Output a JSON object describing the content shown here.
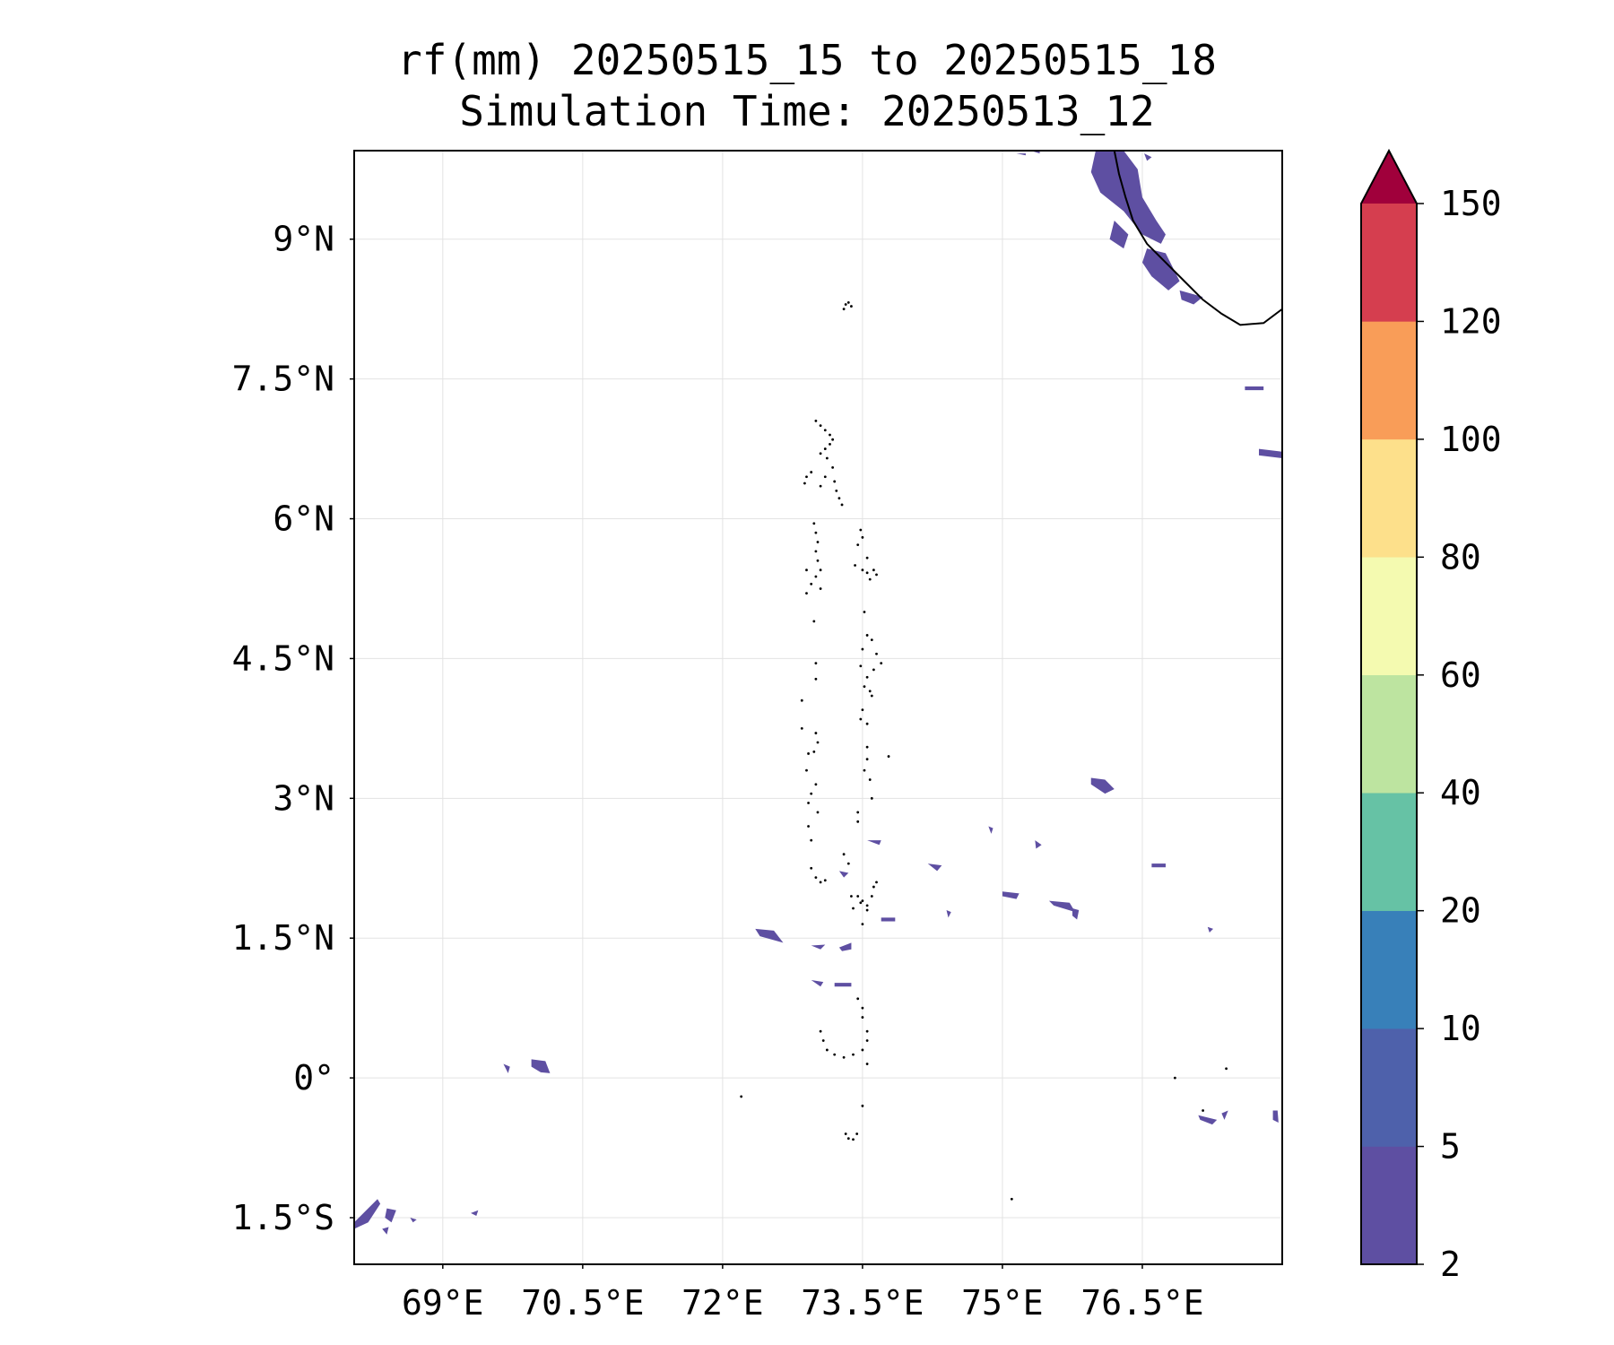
{
  "title": {
    "line1": "rf(mm) 20250515_15 to 20250515_18",
    "line2": "Simulation Time: 20250513_12"
  },
  "map": {
    "extent": {
      "lon_min": 68.05,
      "lon_max": 78.0,
      "lat_min": -2.0,
      "lat_max": 9.95
    },
    "gridlines": true,
    "x_ticks": [
      {
        "value": 69.0,
        "label": "69°E"
      },
      {
        "value": 70.5,
        "label": "70.5°E"
      },
      {
        "value": 72.0,
        "label": "72°E"
      },
      {
        "value": 73.5,
        "label": "73.5°E"
      },
      {
        "value": 75.0,
        "label": "75°E"
      },
      {
        "value": 76.5,
        "label": "76.5°E"
      }
    ],
    "y_ticks": [
      {
        "value": 9.0,
        "label": "9°N"
      },
      {
        "value": 7.5,
        "label": "7.5°N"
      },
      {
        "value": 6.0,
        "label": "6°N"
      },
      {
        "value": 4.5,
        "label": "4.5°N"
      },
      {
        "value": 3.0,
        "label": "3°N"
      },
      {
        "value": 1.5,
        "label": "1.5°N"
      },
      {
        "value": 0.0,
        "label": "0°"
      },
      {
        "value": -1.5,
        "label": "1.5°S"
      }
    ],
    "rain_color": "#5e4fa2",
    "rain_patches": [
      [
        [
          76.0,
          9.95
        ],
        [
          76.3,
          9.95
        ],
        [
          76.45,
          9.75
        ],
        [
          76.5,
          9.45
        ],
        [
          76.65,
          9.2
        ],
        [
          76.75,
          9.05
        ],
        [
          76.7,
          8.95
        ],
        [
          76.5,
          9.05
        ],
        [
          76.3,
          9.3
        ],
        [
          76.05,
          9.5
        ],
        [
          75.95,
          9.72
        ]
      ],
      [
        [
          76.2,
          9.2
        ],
        [
          76.35,
          9.05
        ],
        [
          76.3,
          8.9
        ],
        [
          76.15,
          9.0
        ]
      ],
      [
        [
          76.55,
          8.9
        ],
        [
          76.75,
          8.85
        ],
        [
          76.9,
          8.55
        ],
        [
          76.78,
          8.45
        ],
        [
          76.6,
          8.6
        ],
        [
          76.5,
          8.75
        ]
      ],
      [
        [
          76.9,
          8.45
        ],
        [
          77.15,
          8.38
        ],
        [
          77.05,
          8.3
        ],
        [
          76.92,
          8.35
        ]
      ],
      [
        [
          77.6,
          7.42
        ],
        [
          77.8,
          7.42
        ],
        [
          77.8,
          7.38
        ],
        [
          77.6,
          7.38
        ]
      ],
      [
        [
          77.75,
          6.75
        ],
        [
          78.0,
          6.72
        ],
        [
          78.0,
          6.65
        ],
        [
          77.75,
          6.68
        ]
      ],
      [
        [
          75.95,
          3.22
        ],
        [
          76.1,
          3.2
        ],
        [
          76.2,
          3.1
        ],
        [
          76.1,
          3.05
        ],
        [
          75.95,
          3.15
        ]
      ],
      [
        [
          72.35,
          1.6
        ],
        [
          72.55,
          1.58
        ],
        [
          72.65,
          1.45
        ],
        [
          72.4,
          1.52
        ]
      ],
      [
        [
          75.0,
          2.0
        ],
        [
          75.18,
          1.98
        ],
        [
          75.15,
          1.92
        ],
        [
          75.0,
          1.95
        ]
      ],
      [
        [
          75.5,
          1.9
        ],
        [
          75.72,
          1.88
        ],
        [
          75.78,
          1.78
        ],
        [
          75.55,
          1.85
        ]
      ],
      [
        [
          69.95,
          0.2
        ],
        [
          70.1,
          0.18
        ],
        [
          70.15,
          0.05
        ],
        [
          70.05,
          0.06
        ],
        [
          69.95,
          0.12
        ]
      ],
      [
        [
          69.65,
          0.15
        ],
        [
          69.72,
          0.12
        ],
        [
          69.7,
          0.05
        ]
      ],
      [
        [
          68.05,
          -1.55
        ],
        [
          68.2,
          -1.4
        ],
        [
          68.3,
          -1.3
        ],
        [
          68.33,
          -1.35
        ],
        [
          68.2,
          -1.55
        ],
        [
          68.05,
          -1.62
        ]
      ],
      [
        [
          68.4,
          -1.4
        ],
        [
          68.5,
          -1.42
        ],
        [
          68.45,
          -1.55
        ],
        [
          68.38,
          -1.5
        ]
      ],
      [
        [
          74.2,
          2.3
        ],
        [
          74.35,
          2.28
        ],
        [
          74.3,
          2.22
        ]
      ],
      [
        [
          73.25,
          2.22
        ],
        [
          73.35,
          2.2
        ],
        [
          73.3,
          2.15
        ]
      ],
      [
        [
          72.95,
          1.05
        ],
        [
          73.08,
          1.03
        ],
        [
          73.05,
          0.98
        ]
      ],
      [
        [
          73.2,
          1.02
        ],
        [
          73.38,
          1.02
        ],
        [
          73.38,
          0.98
        ],
        [
          73.2,
          0.98
        ]
      ],
      [
        [
          73.7,
          1.72
        ],
        [
          73.85,
          1.72
        ],
        [
          73.85,
          1.68
        ],
        [
          73.7,
          1.68
        ]
      ],
      [
        [
          77.9,
          -0.35
        ],
        [
          77.95,
          -0.35
        ],
        [
          77.96,
          -0.48
        ],
        [
          77.9,
          -0.45
        ]
      ],
      [
        [
          73.55,
          2.55
        ],
        [
          73.7,
          2.55
        ],
        [
          73.68,
          2.5
        ]
      ],
      [
        [
          74.85,
          2.7
        ],
        [
          74.9,
          2.68
        ],
        [
          74.88,
          2.62
        ]
      ],
      [
        [
          75.35,
          2.55
        ],
        [
          75.42,
          2.5
        ],
        [
          75.36,
          2.46
        ]
      ],
      [
        [
          75.75,
          1.82
        ],
        [
          75.82,
          1.8
        ],
        [
          75.8,
          1.7
        ],
        [
          75.75,
          1.74
        ]
      ],
      [
        [
          74.4,
          1.8
        ],
        [
          74.45,
          1.78
        ],
        [
          74.42,
          1.72
        ]
      ],
      [
        [
          76.6,
          2.3
        ],
        [
          76.75,
          2.3
        ],
        [
          76.75,
          2.26
        ],
        [
          76.6,
          2.26
        ]
      ],
      [
        [
          77.2,
          1.62
        ],
        [
          77.26,
          1.6
        ],
        [
          77.22,
          1.56
        ]
      ],
      [
        [
          77.1,
          -0.4
        ],
        [
          77.3,
          -0.45
        ],
        [
          77.25,
          -0.5
        ],
        [
          77.12,
          -0.45
        ]
      ],
      [
        [
          77.35,
          -0.38
        ],
        [
          77.42,
          -0.35
        ],
        [
          77.38,
          -0.45
        ]
      ],
      [
        [
          73.25,
          1.4
        ],
        [
          73.38,
          1.45
        ],
        [
          73.38,
          1.38
        ],
        [
          73.28,
          1.36
        ]
      ],
      [
        [
          72.95,
          1.42
        ],
        [
          73.1,
          1.43
        ],
        [
          73.05,
          1.38
        ]
      ],
      [
        [
          68.35,
          -1.62
        ],
        [
          68.42,
          -1.6
        ],
        [
          68.4,
          -1.68
        ]
      ],
      [
        [
          68.65,
          -1.5
        ],
        [
          68.72,
          -1.52
        ],
        [
          68.68,
          -1.55
        ]
      ],
      [
        [
          69.3,
          -1.45
        ],
        [
          69.38,
          -1.42
        ],
        [
          69.36,
          -1.48
        ]
      ],
      [
        [
          75.15,
          9.92
        ],
        [
          75.25,
          9.92
        ],
        [
          75.25,
          9.9
        ]
      ],
      [
        [
          76.52,
          9.92
        ],
        [
          76.6,
          9.88
        ],
        [
          76.55,
          9.84
        ]
      ],
      [
        [
          75.3,
          9.95
        ],
        [
          75.4,
          9.95
        ],
        [
          75.4,
          9.92
        ]
      ]
    ],
    "coastline_color": "#000000",
    "coastline": [
      [
        76.2,
        9.95
      ],
      [
        76.25,
        9.7
      ],
      [
        76.32,
        9.45
      ],
      [
        76.4,
        9.2
      ],
      [
        76.55,
        8.95
      ],
      [
        76.75,
        8.75
      ],
      [
        76.95,
        8.55
      ],
      [
        77.15,
        8.35
      ],
      [
        77.35,
        8.2
      ],
      [
        77.55,
        8.08
      ],
      [
        77.8,
        8.1
      ],
      [
        78.0,
        8.25
      ]
    ],
    "atoll_dots": [
      [
        73.0,
        7.05
      ],
      [
        73.05,
        7.0
      ],
      [
        73.1,
        6.95
      ],
      [
        73.15,
        6.9
      ],
      [
        73.18,
        6.85
      ],
      [
        73.15,
        6.8
      ],
      [
        73.1,
        6.75
      ],
      [
        73.05,
        6.7
      ],
      [
        73.12,
        6.65
      ],
      [
        73.18,
        6.55
      ],
      [
        73.1,
        6.45
      ],
      [
        73.05,
        6.35
      ],
      [
        72.95,
        6.5
      ],
      [
        72.9,
        6.45
      ],
      [
        72.88,
        6.38
      ],
      [
        73.2,
        6.4
      ],
      [
        73.22,
        6.3
      ],
      [
        73.25,
        6.22
      ],
      [
        73.28,
        6.15
      ],
      [
        72.98,
        5.95
      ],
      [
        73.0,
        5.85
      ],
      [
        73.02,
        5.75
      ],
      [
        73.0,
        5.65
      ],
      [
        73.02,
        5.55
      ],
      [
        72.9,
        5.45
      ],
      [
        73.05,
        5.45
      ],
      [
        73.0,
        5.38
      ],
      [
        72.95,
        5.3
      ],
      [
        72.9,
        5.2
      ],
      [
        73.05,
        5.25
      ],
      [
        72.98,
        4.9
      ],
      [
        73.48,
        5.88
      ],
      [
        73.5,
        5.8
      ],
      [
        73.45,
        5.72
      ],
      [
        73.42,
        5.5
      ],
      [
        73.5,
        5.45
      ],
      [
        73.55,
        5.42
      ],
      [
        73.62,
        5.45
      ],
      [
        73.65,
        5.4
      ],
      [
        73.58,
        5.35
      ],
      [
        73.55,
        5.58
      ],
      [
        73.52,
        5.0
      ],
      [
        73.55,
        4.75
      ],
      [
        73.6,
        4.7
      ],
      [
        73.5,
        4.6
      ],
      [
        73.65,
        4.55
      ],
      [
        73.7,
        4.45
      ],
      [
        73.62,
        4.38
      ],
      [
        73.55,
        4.3
      ],
      [
        73.52,
        4.2
      ],
      [
        73.58,
        4.15
      ],
      [
        73.6,
        4.1
      ],
      [
        73.48,
        4.42
      ],
      [
        73.5,
        3.95
      ],
      [
        73.48,
        3.85
      ],
      [
        73.55,
        3.8
      ],
      [
        73.0,
        4.45
      ],
      [
        73.0,
        4.28
      ],
      [
        72.85,
        4.05
      ],
      [
        72.85,
        3.75
      ],
      [
        73.0,
        3.7
      ],
      [
        73.02,
        3.6
      ],
      [
        72.98,
        3.5
      ],
      [
        72.92,
        3.48
      ],
      [
        72.9,
        3.3
      ],
      [
        73.0,
        3.15
      ],
      [
        72.95,
        3.05
      ],
      [
        72.92,
        2.95
      ],
      [
        73.02,
        2.85
      ],
      [
        72.92,
        2.7
      ],
      [
        72.95,
        2.55
      ],
      [
        73.55,
        3.55
      ],
      [
        73.55,
        3.42
      ],
      [
        73.58,
        3.2
      ],
      [
        73.6,
        3.0
      ],
      [
        73.45,
        2.85
      ],
      [
        73.45,
        2.75
      ],
      [
        73.78,
        3.45
      ],
      [
        73.52,
        3.3
      ],
      [
        72.95,
        2.25
      ],
      [
        73.0,
        2.15
      ],
      [
        73.05,
        2.1
      ],
      [
        73.1,
        2.12
      ],
      [
        73.3,
        2.4
      ],
      [
        73.35,
        2.3
      ],
      [
        73.45,
        1.95
      ],
      [
        73.5,
        1.9
      ],
      [
        73.55,
        1.85
      ],
      [
        73.6,
        1.95
      ],
      [
        73.62,
        2.05
      ],
      [
        73.65,
        2.1
      ],
      [
        73.55,
        1.8
      ],
      [
        73.4,
        1.82
      ],
      [
        73.48,
        1.88
      ],
      [
        73.38,
        1.95
      ],
      [
        73.5,
        1.65
      ],
      [
        73.45,
        0.85
      ],
      [
        73.5,
        0.75
      ],
      [
        73.5,
        0.65
      ],
      [
        73.55,
        0.5
      ],
      [
        73.55,
        0.4
      ],
      [
        73.5,
        0.3
      ],
      [
        73.4,
        0.25
      ],
      [
        73.3,
        0.22
      ],
      [
        73.2,
        0.25
      ],
      [
        73.12,
        0.3
      ],
      [
        73.08,
        0.4
      ],
      [
        73.05,
        0.5
      ],
      [
        73.55,
        0.15
      ],
      [
        73.32,
        -0.6
      ],
      [
        73.35,
        -0.65
      ],
      [
        73.4,
        -0.66
      ],
      [
        73.44,
        -0.6
      ],
      [
        73.5,
        -0.3
      ],
      [
        73.32,
        8.3
      ],
      [
        73.35,
        8.32
      ],
      [
        73.38,
        8.28
      ],
      [
        73.3,
        8.25
      ],
      [
        72.2,
        -0.2
      ],
      [
        75.1,
        -1.3
      ],
      [
        77.4,
        0.1
      ],
      [
        76.85,
        0.0
      ],
      [
        77.15,
        -0.35
      ]
    ]
  },
  "colorbar": {
    "levels": [
      "2",
      "5",
      "10",
      "20",
      "40",
      "60",
      "80",
      "100",
      "120",
      "150"
    ],
    "colors": [
      "#5e4fa2",
      "#4e61ab",
      "#3880b9",
      "#66c2a5",
      "#bde4a0",
      "#f4fab0",
      "#fde08b",
      "#f99d58",
      "#d53e4f",
      "#a0003b"
    ]
  }
}
